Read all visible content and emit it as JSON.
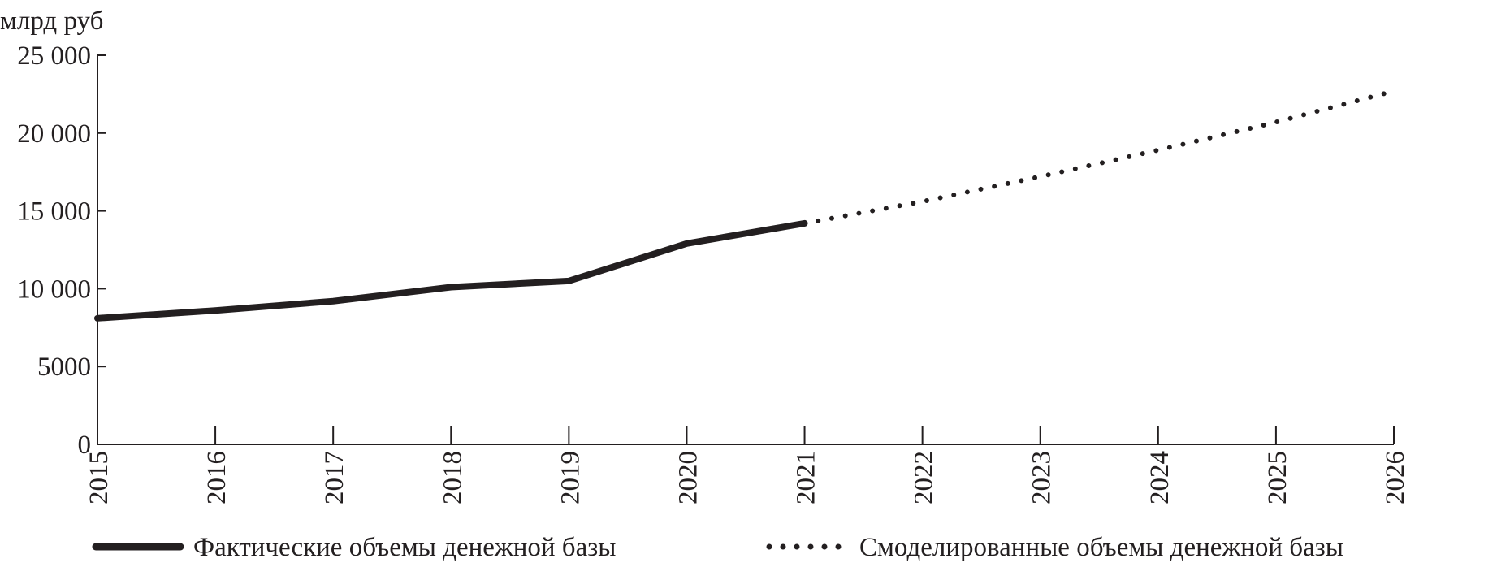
{
  "chart_data": {
    "type": "line",
    "title": "",
    "ylabel": "млрд руб",
    "xlabel": "",
    "ylim": [
      0,
      25000
    ],
    "yticks": [
      0,
      5000,
      10000,
      15000,
      20000,
      25000
    ],
    "ytick_labels": [
      "0",
      "5000",
      "10 000",
      "15 000",
      "20 000",
      "25 000"
    ],
    "x": [
      "2015",
      "2016",
      "2017",
      "2018",
      "2019",
      "2020",
      "2021",
      "2022",
      "2023",
      "2024",
      "2025",
      "2026"
    ],
    "grid": false,
    "legend_position": "bottom",
    "series": [
      {
        "name": "Фактические объемы денежной базы",
        "style": "solid",
        "x": [
          "2015",
          "2016",
          "2017",
          "2018",
          "2019",
          "2020",
          "2021"
        ],
        "values": [
          8100,
          8600,
          9200,
          10100,
          10500,
          12900,
          14200
        ]
      },
      {
        "name": "Смоделированные объемы денежной базы",
        "style": "dotted",
        "x": [
          "2021",
          "2022",
          "2023",
          "2024",
          "2025",
          "2026"
        ],
        "values": [
          14200,
          15600,
          17200,
          18900,
          20700,
          22700
        ]
      }
    ],
    "colors": {
      "line": "#231f20"
    }
  }
}
